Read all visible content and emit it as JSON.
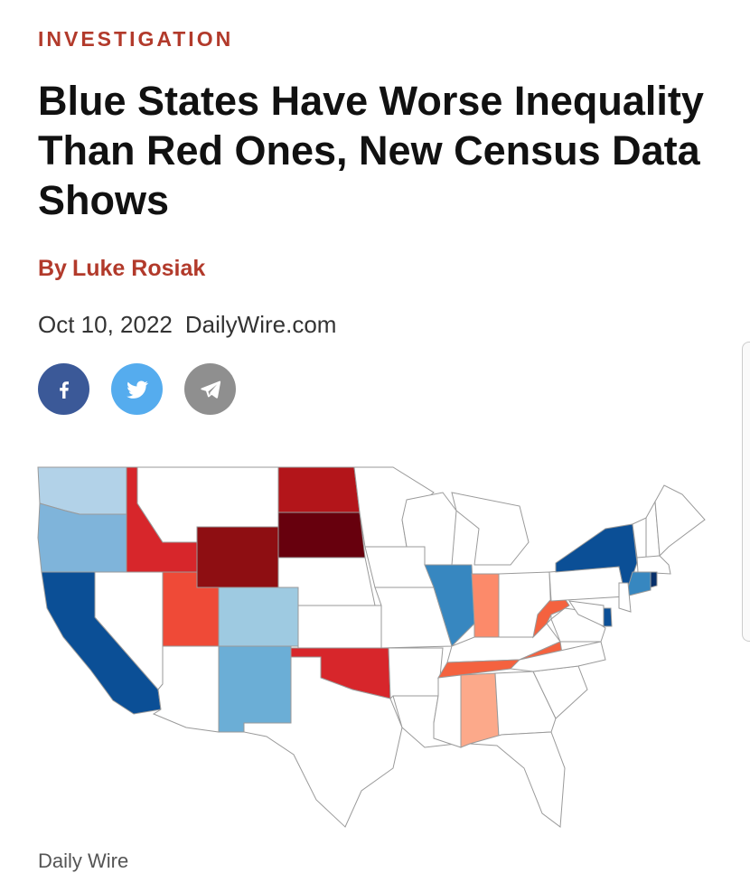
{
  "article": {
    "kicker": "INVESTIGATION",
    "headline": "Blue States Have Worse Inequality Than Red Ones, New Census Data Shows",
    "byline_prefix": "By",
    "author": "Luke Rosiak",
    "date": "Oct 10, 2022",
    "source": "DailyWire.com"
  },
  "share": {
    "facebook_icon": "facebook-icon",
    "twitter_icon": "twitter-icon",
    "telegram_icon": "telegram-icon",
    "colors": {
      "facebook": "#3b5998",
      "twitter": "#55acee",
      "telegram": "#8f8f8f"
    }
  },
  "map": {
    "credit": "Daily Wire",
    "colors": {
      "dark_red": "#67000d",
      "red_1": "#8e0e12",
      "red_2": "#d7262b",
      "red_3": "#ef4a37",
      "red_4": "#fc8a6a",
      "red_5": "#fca98a",
      "blue_dark": "#0b4f96",
      "blue_mid": "#3787c0",
      "blue_light": "#6baed6",
      "blue_pale": "#9ecae1",
      "blue_palest": "#b2d2e8",
      "none": "#ffffff"
    },
    "state_fills": {
      "WA": "#b2d2e8",
      "OR": "#7fb4da",
      "CA": "#0b4f96",
      "NV": "#ffffff",
      "ID": "#d7262b",
      "MT": "#ffffff",
      "WY": "#8e0e12",
      "UT": "#ef4a37",
      "AZ": "#ffffff",
      "CO": "#9ecae1",
      "NM": "#6baed6",
      "ND": "#b3151a",
      "SD": "#67000d",
      "NE": "#ffffff",
      "KS": "#ffffff",
      "OK": "#d7262b",
      "TX": "#ffffff",
      "MN": "#ffffff",
      "IA": "#ffffff",
      "MO": "#ffffff",
      "AR": "#ffffff",
      "LA": "#ffffff",
      "WI": "#ffffff",
      "IL": "#3787c0",
      "MI": "#ffffff",
      "IN": "#fc8a6a",
      "OH": "#ffffff",
      "KY": "#ffffff",
      "TN": "#f4623f",
      "MS": "#ffffff",
      "AL": "#fca98a",
      "GA": "#ffffff",
      "FL": "#ffffff",
      "SC": "#ffffff",
      "NC": "#ffffff",
      "VA": "#ffffff",
      "WV": "#f4623f",
      "PA": "#ffffff",
      "NY": "#0b4f96",
      "VT": "#ffffff",
      "NH": "#ffffff",
      "ME": "#ffffff",
      "MA": "#ffffff",
      "CT": "#3787c0",
      "RI": "#08306b",
      "NJ": "#ffffff",
      "DE": "#0b4f96",
      "MD": "#ffffff"
    }
  }
}
